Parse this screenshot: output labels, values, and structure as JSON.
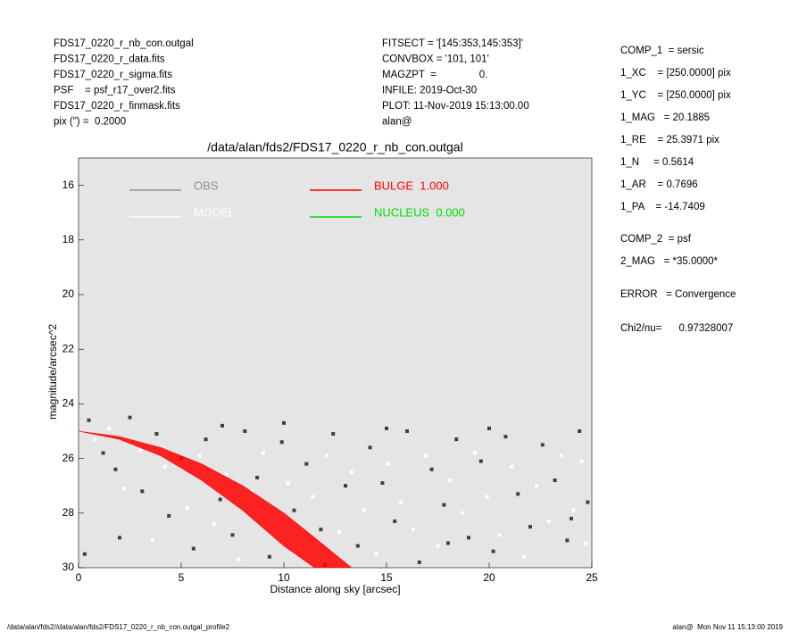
{
  "header": {
    "left": [
      "FDS17_0220_r_nb_con.outgal",
      "FDS17_0220_r_data.fits",
      "FDS17_0220_r_sigma.fits",
      "PSF    = psf_r17_over2.fits",
      "FDS17_0220_r_finmask.fits",
      "pix (\") =  0.2000"
    ],
    "middle": [
      "FITSECT = '[145:353,145:353]'",
      "CONVBOX = '101, 101'",
      "MAGZPT  =               0.",
      "INFILE: 2019-Oct-30",
      "PLOT: 11-Nov-2019 15:13:00.00",
      "alan@"
    ],
    "right": [
      "COMP_1  = sersic",
      "1_XC    = [250.0000] pix",
      "1_YC    = [250.0000] pix",
      "1_MAG   = 20.1885",
      "1_RE    = 25.3971 pix",
      "1_N     = 0.5614",
      "1_AR    = 0.7696",
      "1_PA    = -14.7409",
      "COMP_2  = psf",
      "2_MAG   = *35.0000*",
      "ERROR   = Convergence",
      "Chi2/nu=      0.97328007"
    ]
  },
  "footer": {
    "left": "/data/alan/fds2//data/alan/fds2/FDS17_0220_r_nb_con.outgal_profile2",
    "right": "alan@  Mon Nov 11 15:13:00 2019"
  },
  "chart_data": {
    "type": "scatter",
    "title": "/data/alan/fds2/FDS17_0220_r_nb_con.outgal",
    "x_label": "Distance along sky [arcsec]",
    "y_label": "magnitude/arcsec^2",
    "xlim": [
      0,
      25
    ],
    "xticks": [
      0,
      5,
      10,
      15,
      20,
      25
    ],
    "ylim": [
      30,
      15
    ],
    "yticks": [
      16,
      18,
      20,
      22,
      24,
      26,
      28,
      30
    ],
    "y_inverted": true,
    "background": "#e5e5e5",
    "series": [
      {
        "name": "OBS",
        "color": "#404040",
        "legend_color": "#909090",
        "x": [
          0.5,
          1.2,
          1.8,
          2.5,
          3.1,
          3.8,
          4.4,
          5.0,
          5.6,
          6.2,
          6.9,
          7.5,
          8.1,
          8.7,
          9.3,
          9.9,
          10.5,
          11.1,
          11.8,
          12.4,
          13.0,
          13.6,
          14.2,
          14.8,
          15.4,
          16.0,
          16.6,
          17.2,
          17.8,
          18.4,
          19.0,
          19.6,
          20.2,
          20.8,
          21.4,
          22.0,
          22.6,
          23.2,
          23.8,
          24.4,
          24.8,
          2.0,
          0.3,
          7.0,
          15.0,
          20.0,
          24.0,
          12.0,
          18.0,
          10.0
        ],
        "values": [
          24.6,
          25.8,
          26.4,
          24.5,
          27.2,
          25.1,
          28.1,
          26.0,
          29.3,
          25.3,
          27.5,
          28.8,
          25.0,
          26.7,
          29.6,
          25.4,
          27.9,
          26.2,
          28.6,
          25.1,
          27.0,
          29.2,
          25.6,
          26.9,
          28.3,
          25.0,
          29.8,
          26.4,
          27.7,
          25.3,
          28.9,
          26.1,
          29.4,
          25.2,
          27.3,
          28.5,
          25.5,
          26.8,
          29.0,
          25.0,
          27.6,
          28.9,
          29.5,
          24.8,
          24.9,
          24.9,
          28.2,
          29.9,
          29.1,
          24.7
        ]
      },
      {
        "name": "MODEL",
        "color": "#ffffff",
        "legend_color": "#ffffff",
        "x": [
          0.8,
          1.5,
          2.2,
          3.0,
          3.6,
          4.2,
          5.3,
          5.9,
          6.6,
          7.2,
          7.8,
          8.4,
          9.0,
          9.6,
          10.2,
          10.8,
          11.4,
          12.1,
          12.7,
          13.3,
          13.9,
          14.5,
          15.1,
          15.7,
          16.3,
          16.9,
          17.5,
          18.1,
          18.7,
          19.3,
          19.9,
          20.5,
          21.1,
          21.7,
          22.3,
          22.9,
          23.5,
          24.1,
          24.7,
          24.5
        ],
        "values": [
          25.3,
          24.9,
          27.1,
          25.7,
          29.0,
          26.3,
          27.8,
          25.9,
          28.4,
          26.6,
          29.7,
          27.2,
          25.8,
          28.1,
          26.9,
          29.3,
          27.4,
          25.9,
          28.7,
          26.5,
          27.9,
          29.5,
          26.2,
          27.6,
          28.6,
          25.9,
          29.2,
          26.8,
          28.0,
          25.8,
          27.4,
          28.8,
          26.3,
          29.6,
          27.0,
          28.3,
          25.9,
          27.9,
          29.1,
          26.1
        ]
      },
      {
        "name": "BULGE  1.000",
        "color": "#ff0000",
        "band": true,
        "x": [
          0,
          2,
          4,
          6,
          8,
          10,
          11.5,
          13.3
        ],
        "values": [
          25.0,
          25.2,
          25.6,
          26.2,
          27.0,
          28.0,
          28.9,
          30.0
        ],
        "lower": [
          25.0,
          25.3,
          25.9,
          26.8,
          27.9,
          29.2,
          30.0,
          30.0
        ]
      },
      {
        "name": "NUCLEUS  0.000",
        "color": "#00dd00",
        "x": [],
        "values": []
      }
    ]
  }
}
